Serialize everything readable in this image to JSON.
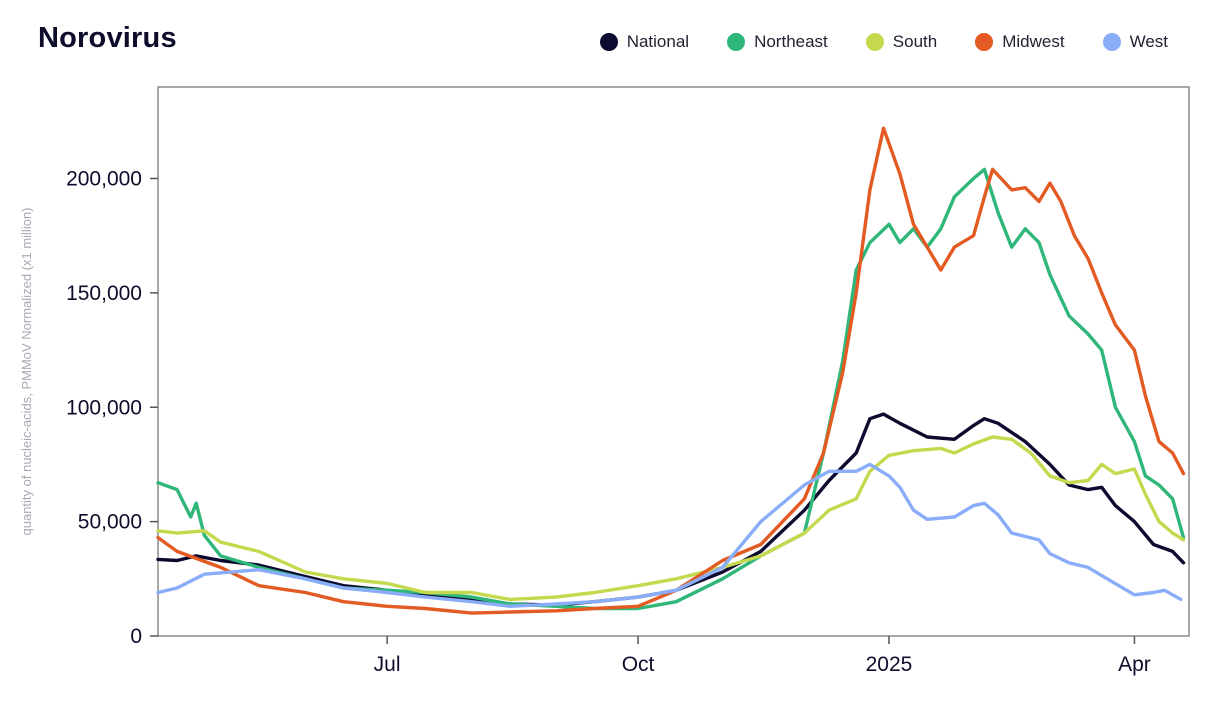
{
  "chart_data": {
    "type": "line",
    "title": "Norovirus",
    "ylabel": "quantity of nucleic-acids, PMMoV Normalized (x1 million)",
    "xlabel": "",
    "ylim": [
      0,
      240000
    ],
    "xlim": [
      "2024-04-08",
      "2025-04-21"
    ],
    "grid": false,
    "legend_position": "top-right",
    "y_ticks": [
      {
        "value": 0,
        "label": "0"
      },
      {
        "value": 50000,
        "label": "50,000"
      },
      {
        "value": 100000,
        "label": "100,000"
      },
      {
        "value": 150000,
        "label": "150,000"
      },
      {
        "value": 200000,
        "label": "200,000"
      }
    ],
    "x_ticks": [
      {
        "value": "2024-07-01",
        "label": "Jul"
      },
      {
        "value": "2024-10-01",
        "label": "Oct"
      },
      {
        "value": "2025-01-01",
        "label": "2025"
      },
      {
        "value": "2025-04-01",
        "label": "Apr"
      }
    ],
    "series": [
      {
        "name": "National",
        "color": "#0c0a2e",
        "values": [
          [
            "2024-04-08",
            33500
          ],
          [
            "2024-04-15",
            33000
          ],
          [
            "2024-04-22",
            35000
          ],
          [
            "2024-05-01",
            33000
          ],
          [
            "2024-05-15",
            31000
          ],
          [
            "2024-06-01",
            26000
          ],
          [
            "2024-06-15",
            22000
          ],
          [
            "2024-07-01",
            20000
          ],
          [
            "2024-07-15",
            18000
          ],
          [
            "2024-08-01",
            16000
          ],
          [
            "2024-08-15",
            14000
          ],
          [
            "2024-09-01",
            13500
          ],
          [
            "2024-09-15",
            15000
          ],
          [
            "2024-10-01",
            17000
          ],
          [
            "2024-10-15",
            20000
          ],
          [
            "2024-11-01",
            28000
          ],
          [
            "2024-11-15",
            37000
          ],
          [
            "2024-12-01",
            55000
          ],
          [
            "2024-12-10",
            68000
          ],
          [
            "2024-12-20",
            80000
          ],
          [
            "2024-12-25",
            95000
          ],
          [
            "2024-12-30",
            97000
          ],
          [
            "2025-01-05",
            93000
          ],
          [
            "2025-01-15",
            87000
          ],
          [
            "2025-01-25",
            86000
          ],
          [
            "2025-02-01",
            92000
          ],
          [
            "2025-02-05",
            95000
          ],
          [
            "2025-02-10",
            93000
          ],
          [
            "2025-02-20",
            85000
          ],
          [
            "2025-03-01",
            75000
          ],
          [
            "2025-03-08",
            66000
          ],
          [
            "2025-03-15",
            64000
          ],
          [
            "2025-03-20",
            65000
          ],
          [
            "2025-03-25",
            57000
          ],
          [
            "2025-04-01",
            50000
          ],
          [
            "2025-04-08",
            40000
          ],
          [
            "2025-04-15",
            37000
          ],
          [
            "2025-04-19",
            32000
          ]
        ]
      },
      {
        "name": "Northeast",
        "color": "#2fb77a",
        "values": [
          [
            "2024-04-08",
            67000
          ],
          [
            "2024-04-15",
            64000
          ],
          [
            "2024-04-20",
            52000
          ],
          [
            "2024-04-22",
            58000
          ],
          [
            "2024-04-25",
            44000
          ],
          [
            "2024-05-01",
            35000
          ],
          [
            "2024-05-15",
            30000
          ],
          [
            "2024-06-01",
            25000
          ],
          [
            "2024-06-15",
            21000
          ],
          [
            "2024-07-01",
            20000
          ],
          [
            "2024-07-15",
            19000
          ],
          [
            "2024-08-01",
            17000
          ],
          [
            "2024-08-15",
            14000
          ],
          [
            "2024-09-01",
            13000
          ],
          [
            "2024-09-15",
            12000
          ],
          [
            "2024-10-01",
            12000
          ],
          [
            "2024-10-15",
            15000
          ],
          [
            "2024-11-01",
            25000
          ],
          [
            "2024-11-15",
            35000
          ],
          [
            "2024-12-01",
            45000
          ],
          [
            "2024-12-08",
            80000
          ],
          [
            "2024-12-15",
            120000
          ],
          [
            "2024-12-20",
            160000
          ],
          [
            "2024-12-25",
            172000
          ],
          [
            "2025-01-01",
            180000
          ],
          [
            "2025-01-05",
            172000
          ],
          [
            "2025-01-10",
            178000
          ],
          [
            "2025-01-15",
            170000
          ],
          [
            "2025-01-20",
            178000
          ],
          [
            "2025-01-25",
            192000
          ],
          [
            "2025-02-01",
            200000
          ],
          [
            "2025-02-05",
            204000
          ],
          [
            "2025-02-10",
            185000
          ],
          [
            "2025-02-15",
            170000
          ],
          [
            "2025-02-20",
            178000
          ],
          [
            "2025-02-25",
            172000
          ],
          [
            "2025-03-01",
            158000
          ],
          [
            "2025-03-08",
            140000
          ],
          [
            "2025-03-15",
            132000
          ],
          [
            "2025-03-20",
            125000
          ],
          [
            "2025-03-25",
            100000
          ],
          [
            "2025-04-01",
            85000
          ],
          [
            "2025-04-05",
            70000
          ],
          [
            "2025-04-10",
            66000
          ],
          [
            "2025-04-15",
            60000
          ],
          [
            "2025-04-19",
            43000
          ]
        ]
      },
      {
        "name": "South",
        "color": "#c5d84e",
        "values": [
          [
            "2024-04-08",
            46000
          ],
          [
            "2024-04-15",
            45000
          ],
          [
            "2024-04-25",
            46000
          ],
          [
            "2024-05-01",
            41000
          ],
          [
            "2024-05-15",
            37000
          ],
          [
            "2024-06-01",
            28000
          ],
          [
            "2024-06-15",
            25000
          ],
          [
            "2024-07-01",
            23000
          ],
          [
            "2024-07-15",
            19000
          ],
          [
            "2024-08-01",
            19000
          ],
          [
            "2024-08-15",
            16000
          ],
          [
            "2024-09-01",
            17000
          ],
          [
            "2024-09-15",
            19000
          ],
          [
            "2024-10-01",
            22000
          ],
          [
            "2024-10-15",
            25000
          ],
          [
            "2024-11-01",
            30000
          ],
          [
            "2024-11-15",
            35000
          ],
          [
            "2024-12-01",
            45000
          ],
          [
            "2024-12-10",
            55000
          ],
          [
            "2024-12-20",
            60000
          ],
          [
            "2024-12-25",
            72000
          ],
          [
            "2025-01-01",
            79000
          ],
          [
            "2025-01-10",
            81000
          ],
          [
            "2025-01-20",
            82000
          ],
          [
            "2025-01-25",
            80000
          ],
          [
            "2025-02-01",
            84000
          ],
          [
            "2025-02-08",
            87000
          ],
          [
            "2025-02-15",
            86000
          ],
          [
            "2025-02-22",
            80000
          ],
          [
            "2025-03-01",
            70000
          ],
          [
            "2025-03-08",
            67000
          ],
          [
            "2025-03-15",
            68000
          ],
          [
            "2025-03-20",
            75000
          ],
          [
            "2025-03-25",
            71000
          ],
          [
            "2025-04-01",
            73000
          ],
          [
            "2025-04-05",
            62000
          ],
          [
            "2025-04-10",
            50000
          ],
          [
            "2025-04-15",
            45000
          ],
          [
            "2025-04-19",
            42000
          ]
        ]
      },
      {
        "name": "Midwest",
        "color": "#e35a22",
        "values": [
          [
            "2024-04-08",
            43000
          ],
          [
            "2024-04-15",
            37000
          ],
          [
            "2024-05-01",
            30000
          ],
          [
            "2024-05-15",
            22000
          ],
          [
            "2024-06-01",
            19000
          ],
          [
            "2024-06-15",
            15000
          ],
          [
            "2024-07-01",
            13000
          ],
          [
            "2024-07-15",
            12000
          ],
          [
            "2024-08-01",
            10000
          ],
          [
            "2024-08-15",
            10500
          ],
          [
            "2024-09-01",
            11000
          ],
          [
            "2024-09-15",
            12000
          ],
          [
            "2024-10-01",
            13000
          ],
          [
            "2024-10-15",
            20000
          ],
          [
            "2024-11-01",
            33000
          ],
          [
            "2024-11-15",
            40000
          ],
          [
            "2024-12-01",
            60000
          ],
          [
            "2024-12-08",
            80000
          ],
          [
            "2024-12-15",
            115000
          ],
          [
            "2024-12-20",
            150000
          ],
          [
            "2024-12-25",
            195000
          ],
          [
            "2024-12-30",
            222000
          ],
          [
            "2025-01-05",
            202000
          ],
          [
            "2025-01-10",
            180000
          ],
          [
            "2025-01-15",
            170000
          ],
          [
            "2025-01-20",
            160000
          ],
          [
            "2025-01-25",
            170000
          ],
          [
            "2025-02-01",
            175000
          ],
          [
            "2025-02-05",
            192000
          ],
          [
            "2025-02-08",
            204000
          ],
          [
            "2025-02-15",
            195000
          ],
          [
            "2025-02-20",
            196000
          ],
          [
            "2025-02-25",
            190000
          ],
          [
            "2025-03-01",
            198000
          ],
          [
            "2025-03-05",
            190000
          ],
          [
            "2025-03-10",
            175000
          ],
          [
            "2025-03-15",
            165000
          ],
          [
            "2025-03-20",
            150000
          ],
          [
            "2025-03-25",
            136000
          ],
          [
            "2025-04-01",
            125000
          ],
          [
            "2025-04-05",
            105000
          ],
          [
            "2025-04-10",
            85000
          ],
          [
            "2025-04-15",
            80000
          ],
          [
            "2025-04-19",
            71000
          ]
        ]
      },
      {
        "name": "West",
        "color": "#8aadf9",
        "values": [
          [
            "2024-04-08",
            19000
          ],
          [
            "2024-04-15",
            21000
          ],
          [
            "2024-04-25",
            27000
          ],
          [
            "2024-05-15",
            29000
          ],
          [
            "2024-06-01",
            25000
          ],
          [
            "2024-06-15",
            21000
          ],
          [
            "2024-07-01",
            19000
          ],
          [
            "2024-07-15",
            17000
          ],
          [
            "2024-08-01",
            15000
          ],
          [
            "2024-08-15",
            13000
          ],
          [
            "2024-09-01",
            14000
          ],
          [
            "2024-09-15",
            15000
          ],
          [
            "2024-10-01",
            17000
          ],
          [
            "2024-10-15",
            20000
          ],
          [
            "2024-11-01",
            30000
          ],
          [
            "2024-11-15",
            50000
          ],
          [
            "2024-12-01",
            66000
          ],
          [
            "2024-12-10",
            72000
          ],
          [
            "2024-12-20",
            72000
          ],
          [
            "2024-12-25",
            75000
          ],
          [
            "2025-01-01",
            70000
          ],
          [
            "2025-01-05",
            65000
          ],
          [
            "2025-01-10",
            55000
          ],
          [
            "2025-01-15",
            51000
          ],
          [
            "2025-01-25",
            52000
          ],
          [
            "2025-02-01",
            57000
          ],
          [
            "2025-02-05",
            58000
          ],
          [
            "2025-02-10",
            53000
          ],
          [
            "2025-02-15",
            45000
          ],
          [
            "2025-02-25",
            42000
          ],
          [
            "2025-03-01",
            36000
          ],
          [
            "2025-03-08",
            32000
          ],
          [
            "2025-03-15",
            30000
          ],
          [
            "2025-03-22",
            25000
          ],
          [
            "2025-04-01",
            18000
          ],
          [
            "2025-04-08",
            19000
          ],
          [
            "2025-04-12",
            20000
          ],
          [
            "2025-04-18",
            16000
          ]
        ]
      }
    ]
  }
}
